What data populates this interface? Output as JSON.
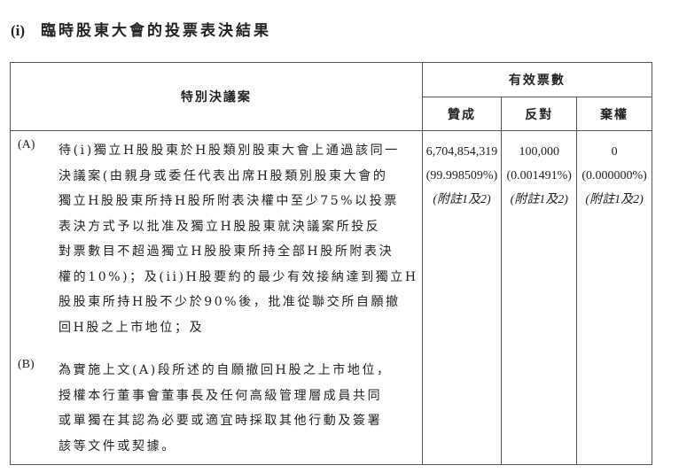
{
  "section": {
    "number": "(i)",
    "title": "臨時股東大會的投票表決結果"
  },
  "table": {
    "header_resolution": "特別決議案",
    "header_votes": "有效票數",
    "columns": [
      "贊成",
      "反對",
      "棄權"
    ],
    "rows": [
      {
        "label": "(A)",
        "lines": [
          "待(i)獨立H股股東於H股類別股東大會上通過該同一",
          "決議案(由親身或委任代表出席H股類別股東大會的",
          "獨立H股股東所持H股所附表決權中至少75%以投票",
          "表決方式予以批准及獨立H股股東就決議案所投反",
          "對票數目不超過獨立H股股東所持全部H股所附表決",
          "權的10%)；及(ii)H股要約的最少有效接納達到獨立H",
          "股股東所持H股不少於90%後，批准從聯交所自願撤",
          "回H股之上市地位；及"
        ],
        "for": {
          "count": "6,704,854,319",
          "pct": "(99.998509%)",
          "note": "(附註1及2)"
        },
        "against": {
          "count": "100,000",
          "pct": "(0.001491%)",
          "note": "(附註1及2)"
        },
        "abstain": {
          "count": "0",
          "pct": "(0.000000%)",
          "note": "(附註1及2)"
        }
      },
      {
        "label": "(B)",
        "lines": [
          "為實施上文(A)段所述的自願撤回H股之上市地位，",
          "授權本行董事會董事長及任何高級管理層成員共同",
          "或單獨在其認為必要或適宜時採取其他行動及簽署",
          "該等文件或契據。"
        ]
      }
    ]
  }
}
